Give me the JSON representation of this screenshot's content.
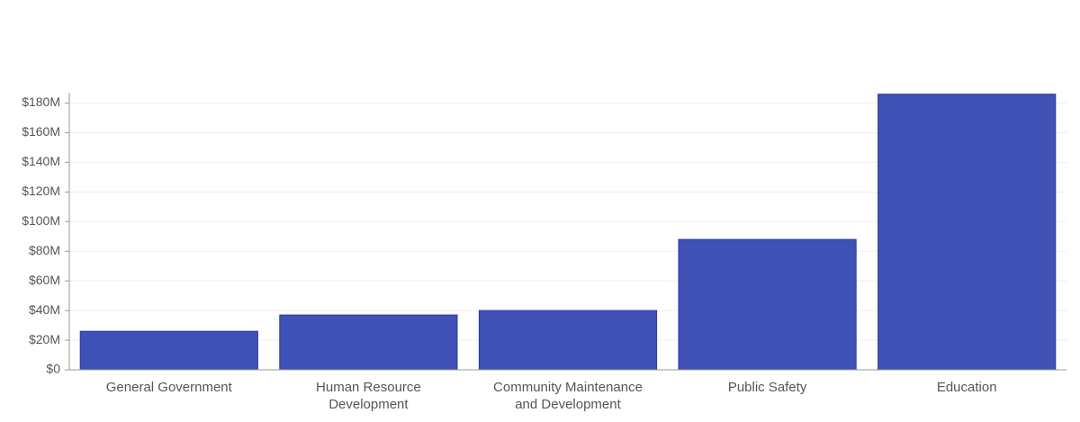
{
  "chart_data": {
    "type": "bar",
    "categories": [
      "General Government",
      "Human Resource Development",
      "Community Maintenance and Development",
      "Public Safety",
      "Education"
    ],
    "values": [
      26000000,
      37000000,
      40000000,
      88000000,
      186000000
    ],
    "color": "#3f51b5",
    "ylim": [
      0,
      187000000
    ],
    "yticks": [
      {
        "value": 0,
        "label": "$0"
      },
      {
        "value": 20000000,
        "label": "$20M"
      },
      {
        "value": 40000000,
        "label": "$40M"
      },
      {
        "value": 60000000,
        "label": "$60M"
      },
      {
        "value": 80000000,
        "label": "$80M"
      },
      {
        "value": 100000000,
        "label": "$100M"
      },
      {
        "value": 120000000,
        "label": "$120M"
      },
      {
        "value": 140000000,
        "label": "$140M"
      },
      {
        "value": 160000000,
        "label": "$160M"
      },
      {
        "value": 180000000,
        "label": "$180M"
      }
    ],
    "grid": true
  }
}
